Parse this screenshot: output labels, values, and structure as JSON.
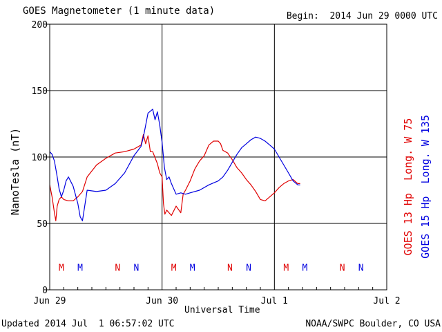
{
  "header": {
    "title": "GOES Magnetometer (1 minute data)",
    "begin": "Begin:  2014 Jun 29 0000 UTC"
  },
  "footer": {
    "updated": "Updated 2014 Jul  1 06:57:02 UTC",
    "credit": "NOAA/SWPC Boulder, CO USA"
  },
  "legend": {
    "goes13": "GOES 13 Hp  Long. W 75",
    "goes15": "GOES 15 Hp  Long. W 135"
  },
  "colors": {
    "goes13": "#e00000",
    "goes15": "#0000e0",
    "grid": "#000000"
  },
  "chart_data": {
    "type": "line",
    "title": "GOES Magnetometer (1 minute data)",
    "xlabel": "Universal Time",
    "ylabel": "NanoTesla (nT)",
    "ylim": [
      0,
      200
    ],
    "xlim": [
      0,
      72
    ],
    "x_unit": "hours since 2014 Jun 29 0000 UTC",
    "yticks": [
      0,
      50,
      100,
      150,
      200
    ],
    "xticks": [
      {
        "x": 0,
        "label": "Jun 29"
      },
      {
        "x": 24,
        "label": "Jun 30"
      },
      {
        "x": 48,
        "label": "Jul 1"
      },
      {
        "x": 72,
        "label": "Jul 2"
      }
    ],
    "grid": true,
    "series": [
      {
        "name": "GOES 13 Hp  Long. W 75",
        "color": "#e00000",
        "x": [
          0,
          0.5,
          1.0,
          1.3,
          1.6,
          2.0,
          2.5,
          3.0,
          4.0,
          5.0,
          6.0,
          7.0,
          8.0,
          10.0,
          12.0,
          14.0,
          16.0,
          18.0,
          19.5,
          20.0,
          20.5,
          21.0,
          21.5,
          22.0,
          23.0,
          23.5,
          24.0,
          24.3,
          24.6,
          25.0,
          26.0,
          27.0,
          28.0,
          28.5,
          29.0,
          30.0,
          31.0,
          32.0,
          33.0,
          34.0,
          35.0,
          36.0,
          36.5,
          37.0,
          38.0,
          39.0,
          40.0,
          41.0,
          42.0,
          43.0,
          44.0,
          45.0,
          46.0,
          47.0,
          48.0,
          49.0,
          50.0,
          51.0,
          52.0,
          53.0,
          53.5
        ],
        "y": [
          79,
          70,
          58,
          52,
          63,
          68,
          70,
          68,
          67,
          67,
          70,
          74,
          85,
          94,
          99,
          103,
          104,
          106,
          109,
          117,
          110,
          116,
          104,
          104,
          95,
          88,
          85,
          65,
          57,
          60,
          56,
          63,
          58,
          72,
          75,
          82,
          91,
          97,
          101,
          109,
          112,
          112,
          110,
          105,
          103,
          98,
          92,
          88,
          83,
          79,
          74,
          68,
          67,
          70,
          73,
          77,
          80,
          82,
          83,
          80,
          80
        ]
      },
      {
        "name": "GOES 15 Hp  Long. W 135",
        "color": "#0000e0",
        "x": [
          0,
          0.5,
          1.0,
          1.5,
          2.0,
          2.5,
          3.0,
          3.5,
          4.0,
          5.0,
          6.0,
          6.5,
          7.0,
          8.0,
          10.0,
          12.0,
          14.0,
          16.0,
          18.0,
          19.5,
          20.0,
          21.0,
          22.0,
          22.5,
          23.0,
          23.5,
          24.0,
          24.5,
          25.0,
          25.5,
          26.0,
          27.0,
          28.0,
          29.0,
          30.0,
          32.0,
          34.0,
          36.0,
          37.0,
          38.0,
          39.0,
          40.0,
          41.0,
          42.0,
          43.0,
          44.0,
          45.0,
          46.0,
          47.0,
          48.0,
          49.0,
          50.0,
          51.0,
          52.0,
          53.0,
          53.5
        ],
        "y": [
          104,
          102,
          97,
          87,
          76,
          70,
          75,
          82,
          85,
          78,
          65,
          55,
          52,
          75,
          74,
          75,
          80,
          88,
          101,
          108,
          115,
          133,
          136,
          128,
          134,
          124,
          111,
          92,
          83,
          85,
          80,
          72,
          73,
          72,
          73,
          75,
          79,
          82,
          85,
          90,
          96,
          102,
          107,
          110,
          113,
          115,
          114,
          112,
          109,
          106,
          100,
          94,
          88,
          82,
          79,
          79
        ]
      }
    ],
    "markers": [
      {
        "x": 2.5,
        "label": "M",
        "color": "#e00000"
      },
      {
        "x": 6.5,
        "label": "M",
        "color": "#0000e0"
      },
      {
        "x": 14.5,
        "label": "N",
        "color": "#e00000"
      },
      {
        "x": 18.5,
        "label": "N",
        "color": "#0000e0"
      },
      {
        "x": 26.5,
        "label": "M",
        "color": "#e00000"
      },
      {
        "x": 30.5,
        "label": "M",
        "color": "#0000e0"
      },
      {
        "x": 38.5,
        "label": "N",
        "color": "#e00000"
      },
      {
        "x": 42.5,
        "label": "N",
        "color": "#0000e0"
      },
      {
        "x": 50.5,
        "label": "M",
        "color": "#e00000"
      },
      {
        "x": 54.5,
        "label": "M",
        "color": "#0000e0"
      },
      {
        "x": 62.5,
        "label": "N",
        "color": "#e00000"
      },
      {
        "x": 66.5,
        "label": "N",
        "color": "#0000e0"
      }
    ],
    "marker_y": 17
  }
}
